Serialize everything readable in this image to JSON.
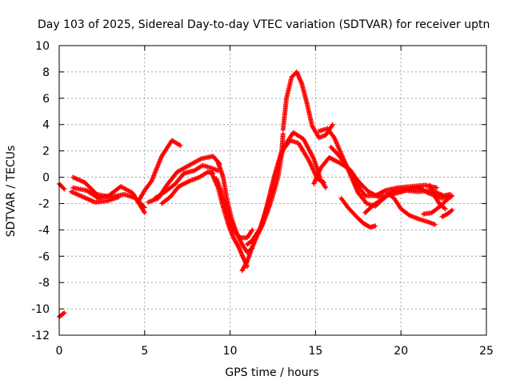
{
  "chart_data": {
    "type": "scatter",
    "title": "Day 103 of 2025, Sidereal Day-to-day VTEC variation (SDTVAR) for receiver uptn",
    "xlabel": "GPS time / hours",
    "ylabel": "SDTVAR / TECUs",
    "xlim": [
      0,
      25
    ],
    "ylim": [
      -12,
      10
    ],
    "xticks": [
      0,
      5,
      10,
      15,
      20,
      25
    ],
    "yticks": [
      -12,
      -10,
      -8,
      -6,
      -4,
      -2,
      0,
      2,
      4,
      6,
      8,
      10
    ],
    "grid": true,
    "marker": "+",
    "color": "#ff0000",
    "series": [
      {
        "name": "satellite tracks",
        "tracks": [
          [
            [
              0.0,
              -10.6
            ],
            [
              0.3,
              -10.3
            ]
          ],
          [
            [
              0.0,
              -0.5
            ],
            [
              0.3,
              -0.9
            ]
          ],
          [
            [
              0.8,
              -0.8
            ],
            [
              1.6,
              -1.0
            ],
            [
              2.3,
              -1.6
            ],
            [
              2.9,
              -1.4
            ],
            [
              3.6,
              -0.7
            ],
            [
              4.3,
              -1.2
            ],
            [
              5.0,
              -2.7
            ]
          ],
          [
            [
              0.8,
              0.0
            ],
            [
              1.5,
              -0.4
            ],
            [
              2.2,
              -1.3
            ],
            [
              3.0,
              -1.5
            ],
            [
              3.8,
              -1.3
            ],
            [
              4.5,
              -1.6
            ],
            [
              5.0,
              -2.3
            ]
          ],
          [
            [
              0.7,
              -1.1
            ],
            [
              1.4,
              -1.5
            ],
            [
              2.1,
              -1.9
            ],
            [
              2.8,
              -1.8
            ],
            [
              3.5,
              -1.5
            ]
          ],
          [
            [
              4.6,
              -1.9
            ],
            [
              5.0,
              -1.0
            ],
            [
              5.4,
              -0.3
            ],
            [
              6.0,
              1.6
            ],
            [
              6.6,
              2.8
            ],
            [
              7.1,
              2.4
            ]
          ],
          [
            [
              5.2,
              -1.9
            ],
            [
              5.8,
              -1.6
            ],
            [
              6.3,
              -0.6
            ],
            [
              6.9,
              0.4
            ],
            [
              7.6,
              0.9
            ],
            [
              8.3,
              1.4
            ],
            [
              9.0,
              1.6
            ],
            [
              9.4,
              1.0
            ]
          ],
          [
            [
              5.6,
              -1.6
            ],
            [
              6.2,
              -1.1
            ],
            [
              6.8,
              -0.5
            ],
            [
              7.3,
              0.3
            ],
            [
              7.9,
              0.5
            ],
            [
              8.4,
              0.9
            ],
            [
              8.9,
              0.7
            ],
            [
              9.3,
              0.5
            ]
          ],
          [
            [
              6.0,
              -2.0
            ],
            [
              6.5,
              -1.5
            ],
            [
              7.0,
              -0.7
            ],
            [
              7.6,
              -0.3
            ],
            [
              8.2,
              0.0
            ],
            [
              8.7,
              0.4
            ],
            [
              9.0,
              0.3
            ]
          ],
          [
            [
              9.3,
              1.1
            ],
            [
              9.6,
              0.0
            ],
            [
              9.8,
              -1.6
            ],
            [
              10.1,
              -3.2
            ],
            [
              10.4,
              -4.3
            ],
            [
              10.7,
              -5.1
            ],
            [
              11.0,
              -5.7
            ],
            [
              11.3,
              -5.4
            ]
          ],
          [
            [
              8.9,
              0.4
            ],
            [
              9.3,
              -0.8
            ],
            [
              9.6,
              -2.3
            ],
            [
              9.9,
              -3.6
            ],
            [
              10.2,
              -4.6
            ],
            [
              10.5,
              -5.3
            ],
            [
              10.8,
              -6.2
            ],
            [
              11.0,
              -6.8
            ]
          ],
          [
            [
              9.2,
              -0.1
            ],
            [
              9.5,
              -1.2
            ],
            [
              9.8,
              -2.6
            ],
            [
              10.2,
              -4.0
            ],
            [
              10.6,
              -4.6
            ],
            [
              11.0,
              -4.6
            ],
            [
              11.3,
              -4.0
            ]
          ],
          [
            [
              10.7,
              -7.1
            ],
            [
              11.0,
              -6.4
            ],
            [
              11.3,
              -5.3
            ],
            [
              11.6,
              -4.4
            ],
            [
              11.9,
              -3.6
            ],
            [
              12.2,
              -2.6
            ],
            [
              12.5,
              -1.4
            ],
            [
              12.8,
              0.0
            ],
            [
              13.0,
              1.6
            ],
            [
              13.1,
              3.3
            ]
          ],
          [
            [
              11.0,
              -5.1
            ],
            [
              11.3,
              -4.8
            ],
            [
              11.7,
              -4.1
            ],
            [
              12.1,
              -2.6
            ],
            [
              12.4,
              -0.9
            ],
            [
              12.8,
              1.0
            ],
            [
              13.2,
              2.4
            ],
            [
              13.7,
              3.4
            ],
            [
              14.3,
              2.9
            ],
            [
              14.9,
              1.4
            ],
            [
              15.3,
              -0.2
            ],
            [
              15.6,
              -0.8
            ]
          ],
          [
            [
              11.4,
              -4.6
            ],
            [
              11.8,
              -3.8
            ],
            [
              12.2,
              -2.0
            ],
            [
              12.6,
              0.1
            ],
            [
              13.0,
              1.9
            ],
            [
              13.5,
              2.8
            ],
            [
              14.0,
              2.6
            ],
            [
              14.6,
              1.3
            ],
            [
              15.1,
              -0.1
            ],
            [
              15.5,
              -0.4
            ]
          ],
          [
            [
              13.1,
              3.6
            ],
            [
              13.3,
              6.0
            ],
            [
              13.6,
              7.6
            ],
            [
              13.9,
              8.0
            ],
            [
              14.2,
              7.1
            ],
            [
              14.5,
              5.6
            ],
            [
              14.8,
              3.9
            ],
            [
              15.2,
              3.0
            ],
            [
              15.6,
              3.2
            ],
            [
              16.0,
              4.0
            ]
          ],
          [
            [
              15.2,
              3.5
            ],
            [
              15.7,
              3.7
            ],
            [
              16.1,
              3.0
            ],
            [
              16.6,
              1.5
            ],
            [
              17.1,
              0.0
            ],
            [
              17.5,
              -1.2
            ],
            [
              18.0,
              -2.0
            ],
            [
              18.5,
              -2.2
            ],
            [
              19.0,
              -1.6
            ]
          ],
          [
            [
              14.9,
              -0.5
            ],
            [
              15.3,
              0.7
            ],
            [
              15.8,
              1.5
            ],
            [
              16.4,
              1.1
            ],
            [
              17.0,
              0.6
            ],
            [
              17.5,
              -0.3
            ],
            [
              18.1,
              -1.1
            ],
            [
              18.7,
              -1.5
            ],
            [
              19.5,
              -1.3
            ],
            [
              20.3,
              -1.0
            ],
            [
              21.2,
              -0.8
            ]
          ],
          [
            [
              15.9,
              2.3
            ],
            [
              16.4,
              1.6
            ],
            [
              16.9,
              0.7
            ],
            [
              17.4,
              -0.5
            ],
            [
              17.9,
              -1.4
            ],
            [
              18.5,
              -1.4
            ],
            [
              19.1,
              -1.0
            ],
            [
              19.8,
              -0.8
            ],
            [
              20.6,
              -0.7
            ],
            [
              21.4,
              -0.6
            ],
            [
              22.1,
              -0.8
            ]
          ],
          [
            [
              16.5,
              -1.6
            ],
            [
              16.9,
              -2.3
            ],
            [
              17.4,
              -3.0
            ],
            [
              17.8,
              -3.5
            ],
            [
              18.2,
              -3.8
            ],
            [
              18.5,
              -3.7
            ]
          ],
          [
            [
              17.9,
              -2.7
            ],
            [
              18.4,
              -2.1
            ],
            [
              19.0,
              -1.6
            ],
            [
              19.6,
              -1.0
            ],
            [
              20.3,
              -1.0
            ],
            [
              21.0,
              -1.1
            ],
            [
              21.8,
              -1.0
            ],
            [
              22.5,
              -1.4
            ],
            [
              22.9,
              -1.3
            ]
          ],
          [
            [
              19.2,
              -1.2
            ],
            [
              19.6,
              -1.6
            ],
            [
              20.0,
              -2.4
            ],
            [
              20.5,
              -2.9
            ],
            [
              21.1,
              -3.2
            ],
            [
              21.6,
              -3.4
            ],
            [
              22.0,
              -3.6
            ]
          ],
          [
            [
              19.9,
              -1.1
            ],
            [
              20.3,
              -0.9
            ],
            [
              20.8,
              -0.8
            ],
            [
              21.2,
              -0.9
            ],
            [
              21.6,
              -1.2
            ],
            [
              22.0,
              -1.4
            ],
            [
              22.4,
              -1.6
            ],
            [
              22.8,
              -1.4
            ]
          ],
          [
            [
              21.3,
              -2.8
            ],
            [
              21.8,
              -2.7
            ],
            [
              22.3,
              -2.2
            ],
            [
              22.7,
              -1.7
            ],
            [
              23.0,
              -1.4
            ]
          ],
          [
            [
              21.7,
              -0.6
            ],
            [
              22.0,
              -1.5
            ],
            [
              22.3,
              -2.1
            ],
            [
              22.6,
              -2.4
            ]
          ],
          [
            [
              22.4,
              -3.0
            ],
            [
              22.7,
              -2.8
            ],
            [
              23.0,
              -2.5
            ]
          ]
        ]
      }
    ]
  }
}
